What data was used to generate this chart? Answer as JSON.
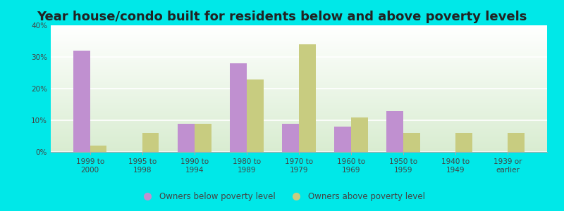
{
  "title": "Year house/condo built for residents below and above poverty levels",
  "categories": [
    "1999 to\n2000",
    "1995 to\n1998",
    "1990 to\n1994",
    "1980 to\n1989",
    "1970 to\n1979",
    "1960 to\n1969",
    "1950 to\n1959",
    "1940 to\n1949",
    "1939 or\nearlier"
  ],
  "below_poverty": [
    32,
    0,
    9,
    28,
    9,
    8,
    13,
    0,
    0
  ],
  "above_poverty": [
    2,
    6,
    9,
    23,
    34,
    11,
    6,
    6,
    6
  ],
  "below_color": "#c090d0",
  "above_color": "#c8cc80",
  "ylim": [
    0,
    40
  ],
  "yticks": [
    0,
    10,
    20,
    30,
    40
  ],
  "ytick_labels": [
    "0%",
    "10%",
    "20%",
    "30%",
    "40%"
  ],
  "background_outer": "#00e8e8",
  "background_plot_top": "#ffffff",
  "background_plot_bottom": "#d8ecd0",
  "legend_below_label": "Owners below poverty level",
  "legend_above_label": "Owners above poverty level",
  "title_fontsize": 13,
  "tick_fontsize": 7.5,
  "legend_fontsize": 8.5
}
